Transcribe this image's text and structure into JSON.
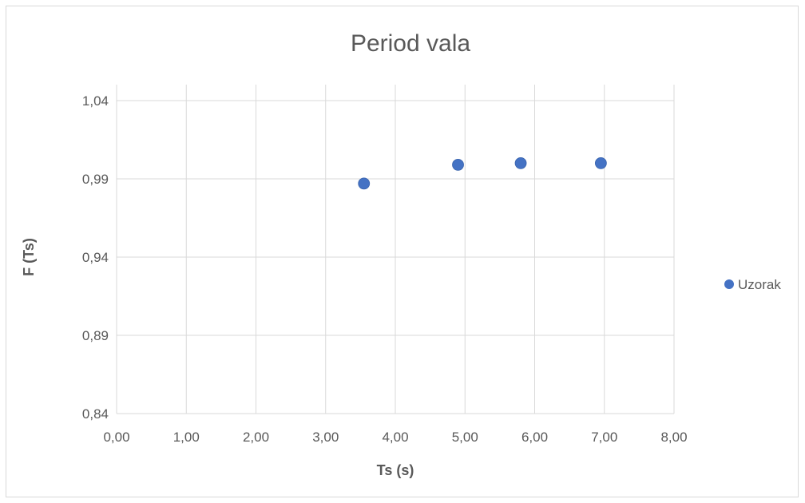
{
  "chart_data": {
    "type": "scatter",
    "title": "Period vala",
    "xlabel": "Ts (s)",
    "ylabel": "F (Ts)",
    "xlim": [
      0,
      8
    ],
    "ylim": [
      0.84,
      1.04
    ],
    "x_ticks": [
      "0,00",
      "1,00",
      "2,00",
      "3,00",
      "4,00",
      "5,00",
      "6,00",
      "7,00",
      "8,00"
    ],
    "y_ticks": [
      "0,84",
      "0,89",
      "0,94",
      "0,99",
      "1,04"
    ],
    "grid": true,
    "legend_position": "right",
    "series": [
      {
        "name": "Uzorak",
        "color": "#4472c4",
        "points": [
          {
            "x": 3.55,
            "y": 0.987
          },
          {
            "x": 4.9,
            "y": 0.999
          },
          {
            "x": 5.8,
            "y": 1.0
          },
          {
            "x": 6.95,
            "y": 1.0
          }
        ]
      }
    ]
  }
}
